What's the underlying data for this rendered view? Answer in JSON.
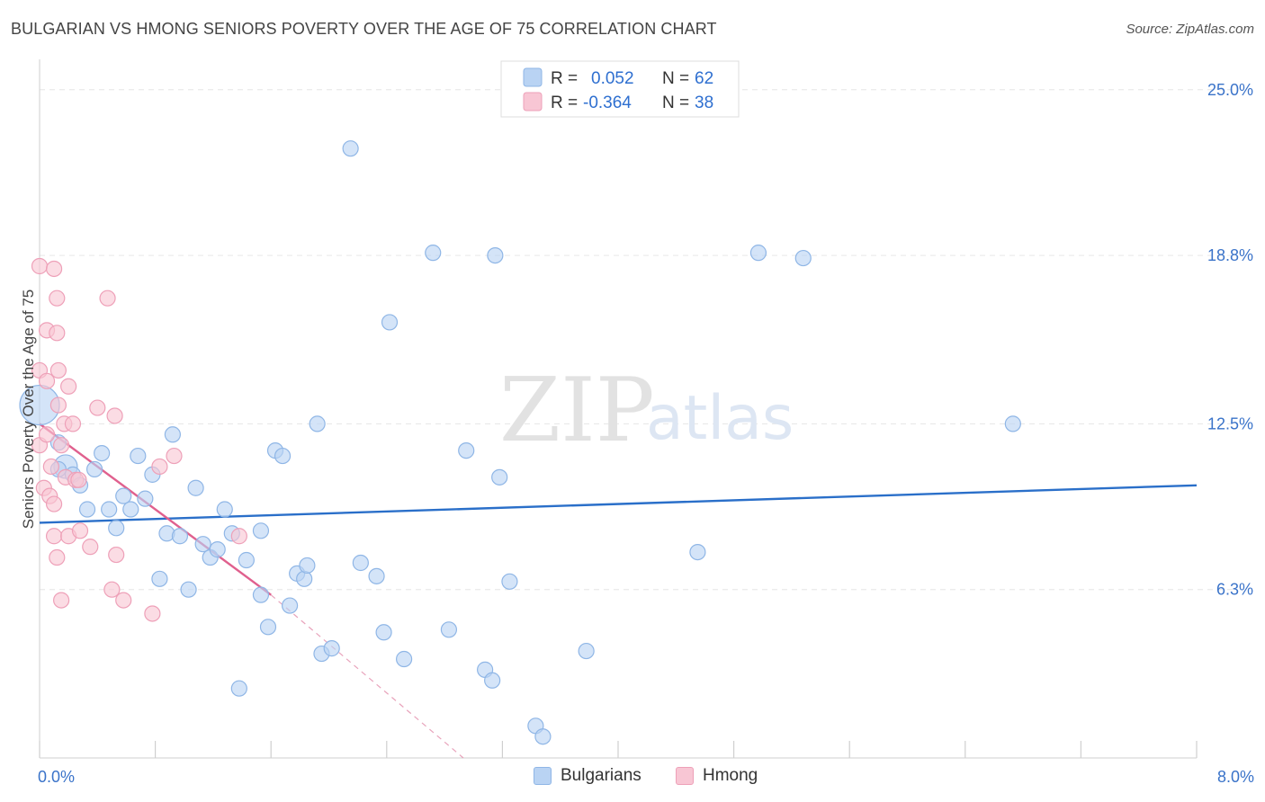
{
  "title": "BULGARIAN VS HMONG SENIORS POVERTY OVER THE AGE OF 75 CORRELATION CHART",
  "source": "Source: ZipAtlas.com",
  "watermark": {
    "zip": "ZIP",
    "atlas": "atlas"
  },
  "colors": {
    "blue_fill": "#b9d3f3",
    "blue_stroke": "#8fb6e6",
    "blue_line": "#2a6fc9",
    "pink_fill": "#f8c6d4",
    "pink_stroke": "#eea0b8",
    "pink_line": "#e0608e",
    "grid": "#e6e6e6",
    "tick_text": "#3a73c9"
  },
  "legend": {
    "rows": [
      {
        "r_label": "R =",
        "r_value": "0.052",
        "n_label": "N =",
        "n_value": "62",
        "series": "blue"
      },
      {
        "r_label": "R =",
        "r_value": "-0.364",
        "n_label": "N =",
        "n_value": "38",
        "series": "pink"
      }
    ]
  },
  "bottom_legend": [
    {
      "label": "Bulgarians",
      "series": "blue"
    },
    {
      "label": "Hmong",
      "series": "pink"
    }
  ],
  "chart_data": {
    "type": "scatter",
    "title": "BULGARIAN VS HMONG SENIORS POVERTY OVER THE AGE OF 75 CORRELATION CHART",
    "xlabel": "",
    "ylabel": "Seniors Poverty Over the Age of 75",
    "xlim": [
      0,
      8
    ],
    "ylim": [
      0,
      25.8
    ],
    "x_tick_labels": [
      {
        "value": 0,
        "label": "0.0%"
      },
      {
        "value": 8,
        "label": "8.0%"
      }
    ],
    "x_minor_ticks": [
      0,
      0.8,
      1.6,
      2.4,
      3.2,
      4.0,
      4.8,
      5.6,
      6.4,
      7.2,
      8.0
    ],
    "y_ticks": [
      {
        "value": 6.3,
        "label": "6.3%"
      },
      {
        "value": 12.5,
        "label": "12.5%"
      },
      {
        "value": 18.8,
        "label": "18.8%"
      },
      {
        "value": 25.0,
        "label": "25.0%"
      }
    ],
    "grid": true,
    "series": [
      {
        "name": "Bulgarians",
        "color": "#b9d3f3",
        "points": [
          [
            0.0,
            13.2
          ],
          [
            0.13,
            11.8
          ],
          [
            0.18,
            10.9
          ],
          [
            0.23,
            10.6
          ],
          [
            0.28,
            10.2
          ],
          [
            0.33,
            9.3
          ],
          [
            0.38,
            10.8
          ],
          [
            0.43,
            11.4
          ],
          [
            0.48,
            9.3
          ],
          [
            0.53,
            8.6
          ],
          [
            0.58,
            9.8
          ],
          [
            0.63,
            9.3
          ],
          [
            0.68,
            11.3
          ],
          [
            0.73,
            9.7
          ],
          [
            0.78,
            10.6
          ],
          [
            0.83,
            6.7
          ],
          [
            0.88,
            8.4
          ],
          [
            0.92,
            12.1
          ],
          [
            0.97,
            8.3
          ],
          [
            1.03,
            6.3
          ],
          [
            1.08,
            10.1
          ],
          [
            1.13,
            8.0
          ],
          [
            1.18,
            7.5
          ],
          [
            1.23,
            7.8
          ],
          [
            1.28,
            9.3
          ],
          [
            1.33,
            8.4
          ],
          [
            1.38,
            2.6
          ],
          [
            1.43,
            7.4
          ],
          [
            1.53,
            6.1
          ],
          [
            1.53,
            8.5
          ],
          [
            1.58,
            4.9
          ],
          [
            1.63,
            11.5
          ],
          [
            1.68,
            11.3
          ],
          [
            1.73,
            5.7
          ],
          [
            1.78,
            6.9
          ],
          [
            1.83,
            6.7
          ],
          [
            1.85,
            7.2
          ],
          [
            1.92,
            12.5
          ],
          [
            1.95,
            3.9
          ],
          [
            2.02,
            4.1
          ],
          [
            2.15,
            22.8
          ],
          [
            2.22,
            7.3
          ],
          [
            2.33,
            6.8
          ],
          [
            2.38,
            4.7
          ],
          [
            2.42,
            16.3
          ],
          [
            2.52,
            3.7
          ],
          [
            2.72,
            18.9
          ],
          [
            2.83,
            4.8
          ],
          [
            2.95,
            11.5
          ],
          [
            3.08,
            3.3
          ],
          [
            3.13,
            2.9
          ],
          [
            3.15,
            18.8
          ],
          [
            3.18,
            10.5
          ],
          [
            3.25,
            6.6
          ],
          [
            3.43,
            1.2
          ],
          [
            3.48,
            0.8
          ],
          [
            3.78,
            4.0
          ],
          [
            4.55,
            7.7
          ],
          [
            4.97,
            18.9
          ],
          [
            5.28,
            18.7
          ],
          [
            6.73,
            12.5
          ],
          [
            0.13,
            10.8
          ]
        ],
        "trend": {
          "x": [
            0.0,
            8.0
          ],
          "y": [
            8.8,
            10.2
          ]
        }
      },
      {
        "name": "Hmong",
        "color": "#f8c6d4",
        "points": [
          [
            0.0,
            18.4
          ],
          [
            0.0,
            14.5
          ],
          [
            0.0,
            11.7
          ],
          [
            0.03,
            10.1
          ],
          [
            0.05,
            16.0
          ],
          [
            0.05,
            14.1
          ],
          [
            0.05,
            12.1
          ],
          [
            0.07,
            9.8
          ],
          [
            0.08,
            10.9
          ],
          [
            0.1,
            9.5
          ],
          [
            0.1,
            8.3
          ],
          [
            0.1,
            18.3
          ],
          [
            0.12,
            17.2
          ],
          [
            0.12,
            7.5
          ],
          [
            0.12,
            15.9
          ],
          [
            0.13,
            14.5
          ],
          [
            0.13,
            13.2
          ],
          [
            0.15,
            5.9
          ],
          [
            0.15,
            11.7
          ],
          [
            0.17,
            12.5
          ],
          [
            0.18,
            10.5
          ],
          [
            0.2,
            8.3
          ],
          [
            0.2,
            13.9
          ],
          [
            0.23,
            12.5
          ],
          [
            0.25,
            10.4
          ],
          [
            0.27,
            10.4
          ],
          [
            0.28,
            8.5
          ],
          [
            0.35,
            7.9
          ],
          [
            0.4,
            13.1
          ],
          [
            0.47,
            17.2
          ],
          [
            0.5,
            6.3
          ],
          [
            0.52,
            12.8
          ],
          [
            0.53,
            7.6
          ],
          [
            0.58,
            5.9
          ],
          [
            0.78,
            5.4
          ],
          [
            0.83,
            10.9
          ],
          [
            0.93,
            11.3
          ],
          [
            1.38,
            8.3
          ]
        ],
        "trend": {
          "x": [
            0.0,
            1.6
          ],
          "y": [
            12.5,
            6.1
          ]
        },
        "trend_extension": {
          "x": [
            1.6,
            2.93
          ],
          "y": [
            6.1,
            0.0
          ]
        }
      }
    ]
  }
}
